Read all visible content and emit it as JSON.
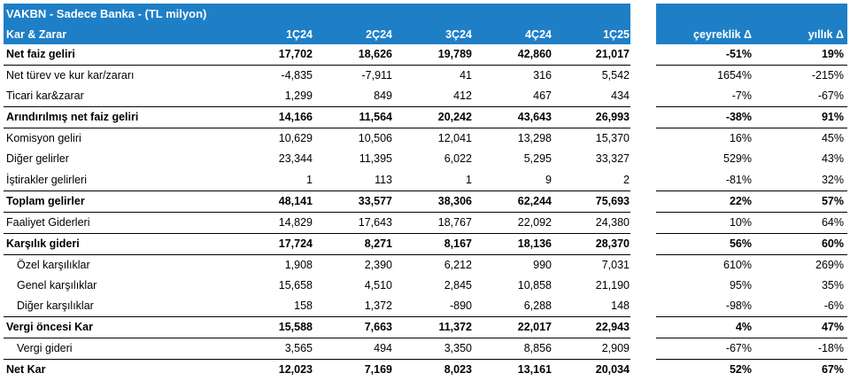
{
  "header": {
    "title": "VAKBN - Sadece Banka - (TL milyon)",
    "label_col": "Kar & Zarar",
    "periods": [
      "1Ç24",
      "2Ç24",
      "3Ç24",
      "4Ç24",
      "1Ç25"
    ],
    "change_cols": [
      "çeyreklik Δ",
      "yıllık Δ"
    ]
  },
  "rows": [
    {
      "label": "Net faiz geliri",
      "values": [
        "17,702",
        "18,626",
        "19,789",
        "42,860",
        "21,017"
      ],
      "qoq": "-51%",
      "yoy": "19%"
    },
    {
      "label": "Net türev ve kur kar/zararı",
      "values": [
        "-4,835",
        "-7,911",
        "41",
        "316",
        "5,542"
      ],
      "qoq": "1654%",
      "yoy": "-215%"
    },
    {
      "label": "Ticari kar&zarar",
      "values": [
        "1,299",
        "849",
        "412",
        "467",
        "434"
      ],
      "qoq": "-7%",
      "yoy": "-67%"
    },
    {
      "label": "Arındırılmış net faiz geliri",
      "values": [
        "14,166",
        "11,564",
        "20,242",
        "43,643",
        "26,993"
      ],
      "qoq": "-38%",
      "yoy": "91%"
    },
    {
      "label": "Komisyon geliri",
      "values": [
        "10,629",
        "10,506",
        "12,041",
        "13,298",
        "15,370"
      ],
      "qoq": "16%",
      "yoy": "45%"
    },
    {
      "label": "Diğer gelirler",
      "values": [
        "23,344",
        "11,395",
        "6,022",
        "5,295",
        "33,327"
      ],
      "qoq": "529%",
      "yoy": "43%"
    },
    {
      "label": "İştirakler gelirleri",
      "values": [
        "1",
        "113",
        "1",
        "9",
        "2"
      ],
      "qoq": "-81%",
      "yoy": "32%"
    },
    {
      "label": "Toplam gelirler",
      "values": [
        "48,141",
        "33,577",
        "38,306",
        "62,244",
        "75,693"
      ],
      "qoq": "22%",
      "yoy": "57%"
    },
    {
      "label": "Faaliyet Giderleri",
      "values": [
        "14,829",
        "17,643",
        "18,767",
        "22,092",
        "24,380"
      ],
      "qoq": "10%",
      "yoy": "64%"
    },
    {
      "label": "Karşılık gideri",
      "values": [
        "17,724",
        "8,271",
        "8,167",
        "18,136",
        "28,370"
      ],
      "qoq": "56%",
      "yoy": "60%"
    },
    {
      "label": "Özel karşılıklar",
      "values": [
        "1,908",
        "2,390",
        "6,212",
        "990",
        "7,031"
      ],
      "qoq": "610%",
      "yoy": "269%"
    },
    {
      "label": "Genel karşılıklar",
      "values": [
        "15,658",
        "4,510",
        "2,845",
        "10,858",
        "21,190"
      ],
      "qoq": "95%",
      "yoy": "35%"
    },
    {
      "label": "Diğer karşılıklar",
      "values": [
        "158",
        "1,372",
        "-890",
        "6,288",
        "148"
      ],
      "qoq": "-98%",
      "yoy": "-6%"
    },
    {
      "label": "Vergi öncesi Kar",
      "values": [
        "15,588",
        "7,663",
        "11,372",
        "22,017",
        "22,943"
      ],
      "qoq": "4%",
      "yoy": "47%"
    },
    {
      "label": "Vergi gideri",
      "values": [
        "3,565",
        "494",
        "3,350",
        "8,856",
        "2,909"
      ],
      "qoq": "-67%",
      "yoy": "-18%"
    },
    {
      "label": "Net Kar",
      "values": [
        "12,023",
        "7,169",
        "8,023",
        "13,161",
        "20,034"
      ],
      "qoq": "52%",
      "yoy": "67%"
    }
  ],
  "colors": {
    "header_bg": "#1f7fc6",
    "header_text": "#ffffff"
  }
}
